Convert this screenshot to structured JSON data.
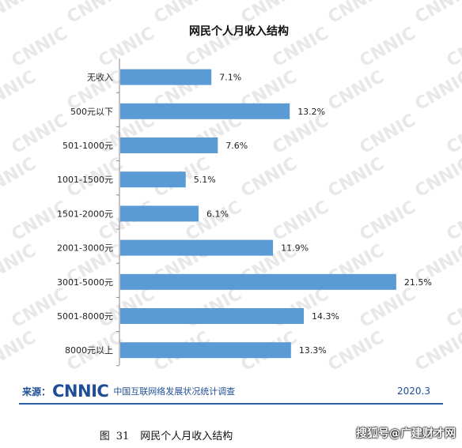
{
  "chart_data": {
    "type": "bar",
    "orientation": "horizontal",
    "title": "网民个人月收入结构",
    "categories": [
      "无收入",
      "500元以下",
      "501-1000元",
      "1001-1500元",
      "1501-2000元",
      "2001-3000元",
      "3001-5000元",
      "5001-8000元",
      "8000元以上"
    ],
    "values": [
      7.1,
      13.2,
      7.6,
      5.1,
      6.1,
      11.9,
      21.5,
      14.3,
      13.3
    ],
    "value_labels": [
      "7.1%",
      "13.2%",
      "7.6%",
      "5.1%",
      "6.1%",
      "11.9%",
      "21.5%",
      "14.3%",
      "13.3%"
    ],
    "xlim": [
      0,
      22
    ],
    "grid": false,
    "bar_color": "#5b9bd5",
    "watermark": "CNNIC"
  },
  "footer": {
    "source_label": "来源：",
    "logo": "CNNIC",
    "source_name": "中国互联网络发展状况统计调查",
    "date": "2020.3"
  },
  "caption": {
    "figure": "图",
    "number": "31",
    "text": "网民个人月收入结构"
  },
  "overlay_watermark": "搜狐号@广建财才网"
}
